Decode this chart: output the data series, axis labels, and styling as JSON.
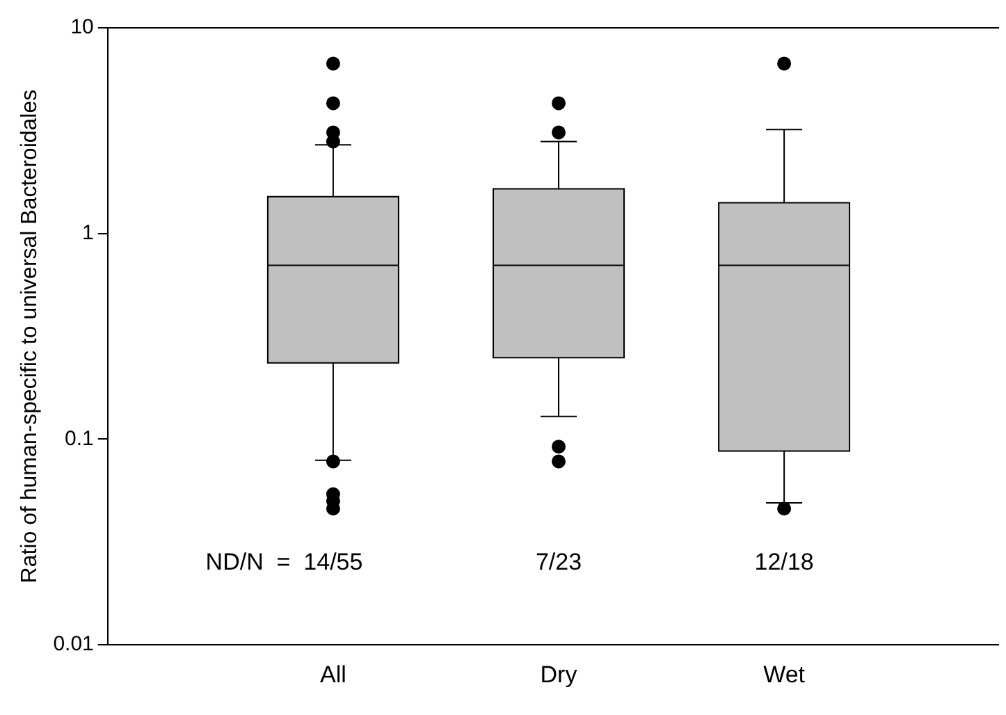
{
  "chart_data": {
    "type": "box",
    "ylabel": "Ratio of human-specific to universal Bacteroidales",
    "categories": [
      "All",
      "Dry",
      "Wet"
    ],
    "color": "#c0c0c0",
    "marker": "circle",
    "log": true,
    "ylim": [
      0.01,
      10
    ],
    "yticks": [
      0.01,
      0.1,
      1,
      10
    ],
    "boxes": [
      {
        "low": 0.079,
        "q1": 0.235,
        "median": 0.7,
        "q3": 1.51,
        "high": 2.7,
        "outliers": [
          6.7,
          4.3,
          3.1,
          2.8,
          0.078,
          0.054,
          0.05,
          0.046
        ]
      },
      {
        "low": 0.129,
        "q1": 0.249,
        "median": 0.7,
        "q3": 1.65,
        "high": 2.8,
        "outliers": [
          4.3,
          3.1,
          0.092,
          0.078
        ]
      },
      {
        "low": 0.049,
        "q1": 0.0875,
        "median": 0.7,
        "q3": 1.41,
        "high": 3.2,
        "outliers": [
          6.7,
          0.046
        ]
      }
    ],
    "annotations": [
      "ND/N  =  14/55",
      "7/23",
      "12/18"
    ]
  }
}
